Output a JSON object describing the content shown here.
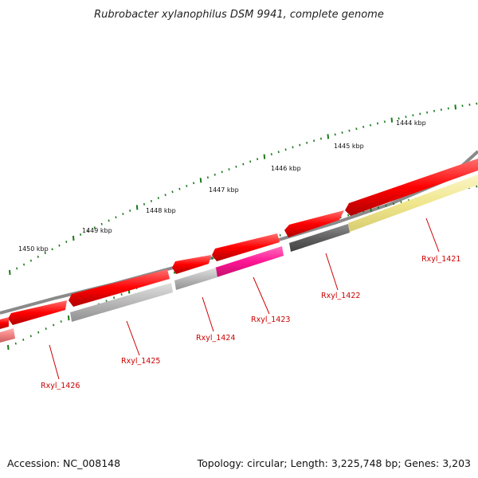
{
  "title": "Rubrobacter xylanophilus DSM 9941, complete genome",
  "accession_label": "Accession: NC_008148",
  "topology_label": "Topology: circular; Length: 3,225,748 bp; Genes: 3,203",
  "ruler": {
    "labels": [
      "1444 kbp",
      "1445 kbp",
      "1446 kbp",
      "1447 kbp",
      "1448 kbp",
      "1449 kbp",
      "1450 kbp"
    ]
  },
  "genes": [
    {
      "locus": "Rxyl_1421",
      "color": "#f0e68c"
    },
    {
      "locus": "Rxyl_1422",
      "color": "#606060"
    },
    {
      "locus": "Rxyl_1423",
      "color": "#ff1493"
    },
    {
      "locus": "Rxyl_1424",
      "color": "#b0b0b0"
    },
    {
      "locus": "Rxyl_1425",
      "color": "#b0b0b0"
    },
    {
      "locus": "Rxyl_1426",
      "color": "#f08080"
    }
  ],
  "colors": {
    "backbone": "#808080",
    "forward_strand": "#ff0000",
    "ticks": "#1a7a1a",
    "locus_text": "#cc0000"
  }
}
